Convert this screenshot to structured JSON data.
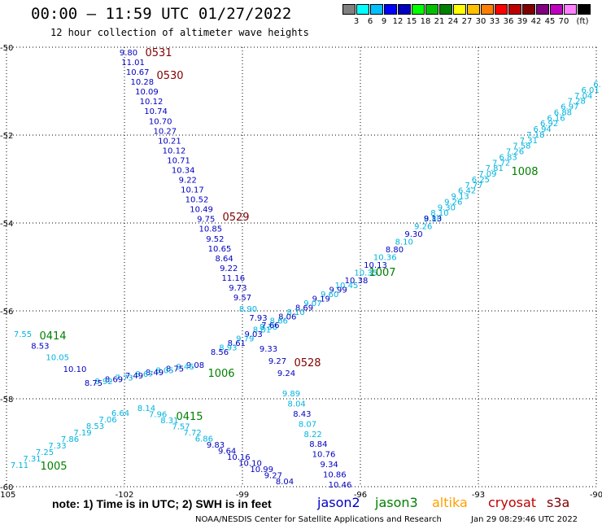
{
  "header": {
    "title": "00:00 – 11:59 UTC 01/27/2022",
    "subtitle": "12 hour collection of altimeter wave heights"
  },
  "legend": {
    "colors": [
      "#808080",
      "#00ffff",
      "#00c0ff",
      "#0000ff",
      "#0000c0",
      "#00ff00",
      "#00c000",
      "#008000",
      "#ffff00",
      "#ffc000",
      "#ff8000",
      "#ff0000",
      "#c00000",
      "#800000",
      "#800080",
      "#c000c0",
      "#ff80ff",
      "#000000"
    ],
    "labels": [
      "3",
      "6",
      "9",
      "12",
      "15",
      "18",
      "21",
      "24",
      "27",
      "30",
      "33",
      "36",
      "39",
      "42",
      "45",
      "70",
      "(ft)"
    ]
  },
  "map": {
    "lat_labels": [
      "-50",
      "-52",
      "-54",
      "-56",
      "-58",
      "-60"
    ],
    "lon_labels": [
      "-105",
      "-102",
      "-99",
      "-96",
      "-93",
      "-90"
    ],
    "lon_label_lats": [
      -105,
      -102,
      -99,
      -96,
      -93,
      -90
    ]
  },
  "satellite_colors": {
    "jason2": "#0000c0",
    "jason3": "#008000",
    "altika": "#ffa000",
    "cryosat": "#c00000",
    "s3a": "#800000",
    "track_light": "#00b4e0",
    "track_dark": "#0000c0"
  },
  "tracks": [
    {
      "label": "0531",
      "label_color": "#800000",
      "points": [
        {
          "v": "9.80",
          "c": "#0000c0"
        },
        {
          "v": "11.01",
          "c": "#0000c0"
        }
      ]
    }
  ],
  "chart_data": {
    "type": "scatter",
    "x_label": "",
    "y_label": "",
    "x_range": [
      -105,
      -90
    ],
    "y_range": [
      -60,
      -50
    ],
    "series": [
      {
        "name": "0531/0530",
        "points": [
          {
            "text": "9.80",
            "lon": -101.98,
            "lat": -50.1
          },
          {
            "text": "11.01",
            "lon": -101.85,
            "lat": -50.3
          },
          {
            "text": "10.67",
            "lon": -101.72,
            "lat": -50.7
          },
          {
            "text": "10.28",
            "lon": -101.64,
            "lat": -50.9
          },
          {
            "text": "10.09",
            "lon": -101.55,
            "lat": -51.1
          },
          {
            "text": "10.12",
            "lon": -101.48,
            "lat": -51.3
          },
          {
            "text": "10.74",
            "lon": -101.38,
            "lat": -51.5
          },
          {
            "text": "10.70",
            "lon": -101.3,
            "lat": -51.7
          },
          {
            "text": "10.27",
            "lon": -101.22,
            "lat": -51.95
          },
          {
            "text": "10.21",
            "lon": -101.12,
            "lat": -52.15
          },
          {
            "text": "10.12",
            "lon": -101.05,
            "lat": -52.35
          },
          {
            "text": "10.71",
            "lon": -100.95,
            "lat": -52.55
          },
          {
            "text": "10.34",
            "lon": -100.88,
            "lat": -52.75
          },
          {
            "text": "9.22",
            "lon": -100.78,
            "lat": -52.95
          },
          {
            "text": "10.17",
            "lon": -100.7,
            "lat": -53.15
          },
          {
            "text": "10.52",
            "lon": -100.6,
            "lat": -53.35
          },
          {
            "text": "10.49",
            "lon": -100.52,
            "lat": -53.6
          },
          {
            "text": "9.75",
            "lon": -100.42,
            "lat": -53.8
          },
          {
            "text": "10.85",
            "lon": -100.35,
            "lat": -54.0
          },
          {
            "text": "9.52",
            "lon": -100.25,
            "lat": -54.2
          },
          {
            "text": "10.65",
            "lon": -100.18,
            "lat": -54.4
          },
          {
            "text": "8.64",
            "lon": -100.08,
            "lat": -54.6
          },
          {
            "text": "9.22",
            "lon": -100.0,
            "lat": -54.85
          },
          {
            "text": "11.16",
            "lon": -99.9,
            "lat": -55.05
          },
          {
            "text": "9.73",
            "lon": -99.82,
            "lat": -55.25
          },
          {
            "text": "9.57",
            "lon": -99.72,
            "lat": -55.45
          }
        ]
      }
    ]
  },
  "labels": {
    "tracks": [
      {
        "id": "0531",
        "color": "#800000"
      },
      {
        "id": "0530",
        "color": "#800000"
      },
      {
        "id": "0529",
        "color": "#800000"
      },
      {
        "id": "0528",
        "color": "#800000"
      },
      {
        "id": "0414",
        "color": "#008000"
      },
      {
        "id": "1008",
        "color": "#008000"
      },
      {
        "id": "1007",
        "color": "#008000"
      },
      {
        "id": "1006",
        "color": "#008000"
      },
      {
        "id": "0415",
        "color": "#008000"
      },
      {
        "id": "1005",
        "color": "#008000"
      }
    ]
  },
  "points": {
    "blue_desc": [
      "9.80",
      "11.01",
      "10.67",
      "10.28",
      "10.09",
      "10.12",
      "10.74",
      "10.70",
      "10.27",
      "10.21",
      "10.12",
      "10.71",
      "10.34",
      "9.22",
      "10.17",
      "10.52",
      "10.49",
      "9.75",
      "10.85",
      "9.52",
      "10.65",
      "8.64",
      "9.22",
      "11.16",
      "9.73",
      "9.57",
      "8.90",
      "7.93",
      "8.38",
      "9.33",
      "9.27",
      "9.24",
      "9.89",
      "8.04",
      "8.43",
      "8.07",
      "8.22",
      "8.84",
      "10.76",
      "9.34",
      "10.86",
      "10.46"
    ],
    "asc_right": [
      "6.",
      "6.01",
      "7.04",
      "7.28",
      "6.97",
      "6.88",
      "6.16",
      "6.92",
      "6.94",
      "7.18",
      "7.31",
      "7.58",
      "7.26",
      "6.83",
      "7.72",
      "7.81",
      "7.09",
      "6.25",
      "7.77",
      "6.42",
      "9.13",
      "9.26",
      "9.30",
      "8.10",
      "8.80",
      "10.36",
      "10.13",
      "10.35",
      "10.38",
      "10.45",
      "9.99",
      "9.60",
      "9.19",
      "9.07",
      "8.69",
      "8.10",
      "8.06",
      "8.66",
      "7.66",
      "8.81",
      "9.03",
      "9.79",
      "8.61",
      "8.93",
      "8.56",
      "9.08",
      "9.46",
      "8.75",
      "8.05",
      "8.49",
      "8.67",
      "7.49",
      "7.73",
      "8.69",
      "8.92",
      "8.75",
      "10.10",
      "10.05",
      "8.53",
      "7.55"
    ],
    "desc_low": [
      "8.14",
      "7.96",
      "8.31",
      "7.57",
      "7.72",
      "6.86",
      "9.83",
      "9.64",
      "10.16",
      "10.10",
      "10.99",
      "9.27",
      "8.04"
    ],
    "asc_low": [
      "6.64",
      "7.06",
      "8.53",
      "7.19",
      "7.86",
      "7.33",
      "7.25",
      "7.31",
      "7.11"
    ],
    "misc": [
      "10.84",
      "9.24",
      "9.33",
      "9.27"
    ]
  },
  "footer": {
    "note": "note:  1) Time is in UTC; 2) SWH is in feet",
    "sats": [
      "jason2",
      "jason3",
      "altika",
      "cryosat",
      "s3a"
    ],
    "credit": "NOAA/NESDIS Center for Satellite Applications and Research",
    "stamp": "Jan 29 08:29:46 UTC 2022"
  }
}
